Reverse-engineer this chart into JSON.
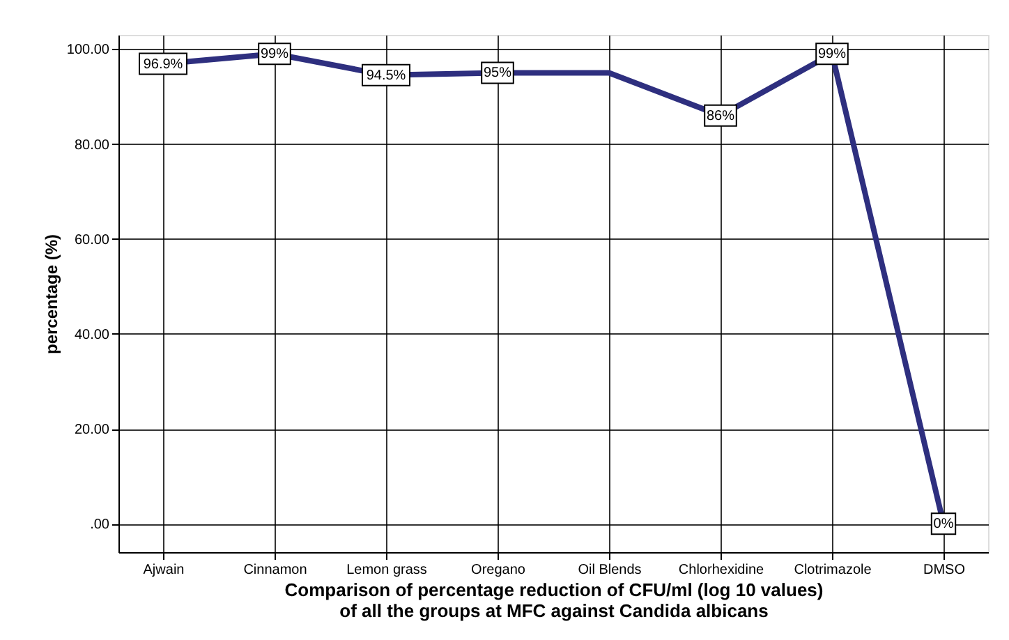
{
  "chart_data": {
    "type": "line",
    "xlabel": "Comparison of percentage reduction of CFU/ml (log 10 values) of all the groups at MFC against Candida albicans",
    "ylabel": "percentage (%)",
    "categories": [
      "Ajwain",
      "Cinnamon",
      "Lemon grass",
      "Oregano",
      "Oil Blends",
      "Chlorhexidine",
      "Clotrimazole",
      "DMSO"
    ],
    "series": [
      {
        "color": "#2e2f7f",
        "values": [
          96.9,
          99,
          94.5,
          95,
          95,
          86,
          99,
          0
        ],
        "value_labels": [
          "96.9%",
          "99%",
          "94.5%",
          "95%",
          null,
          "86%",
          "99%",
          "0%"
        ]
      }
    ],
    "ylim": [
      -6,
      103
    ],
    "yticks": [
      {
        "value": 0,
        "label": ".00"
      },
      {
        "value": 20,
        "label": "20.00"
      },
      {
        "value": 40,
        "label": "40.00"
      },
      {
        "value": 60,
        "label": "60.00"
      },
      {
        "value": 80,
        "label": "80.00"
      },
      {
        "value": 100,
        "label": "100.00"
      }
    ],
    "grid": true,
    "marker": "square",
    "line_style": "solid"
  }
}
